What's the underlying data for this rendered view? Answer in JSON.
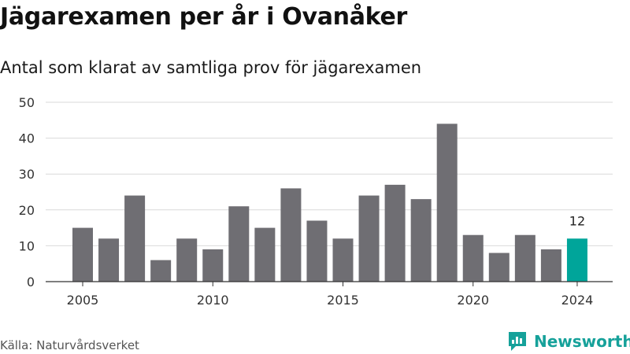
{
  "title": "Jägarexamen per år i Ovanåker",
  "subtitle": "Antal som klarat av samtliga prov för jägarexamen",
  "source": "Källa: Naturvårdsverket",
  "brand": "Newsworthy",
  "colors": {
    "bar": "#6f6e73",
    "highlight": "#00a59a",
    "grid": "#d9d9d9",
    "brand": "#16a19a"
  },
  "chart_data": {
    "type": "bar",
    "x": [
      2005,
      2006,
      2007,
      2008,
      2009,
      2010,
      2011,
      2012,
      2013,
      2014,
      2015,
      2016,
      2017,
      2018,
      2019,
      2020,
      2021,
      2022,
      2023,
      2024
    ],
    "values": [
      15,
      12,
      24,
      6,
      12,
      9,
      21,
      15,
      26,
      17,
      12,
      24,
      27,
      23,
      44,
      13,
      8,
      13,
      9,
      12
    ],
    "x_ticks": [
      2005,
      2010,
      2015,
      2020,
      2024
    ],
    "y_ticks": [
      0,
      10,
      20,
      30,
      40,
      50
    ],
    "ylim": [
      0,
      50
    ],
    "highlight": {
      "x": 2024,
      "label": "12"
    },
    "grid": true,
    "xlabel": "",
    "ylabel": ""
  }
}
